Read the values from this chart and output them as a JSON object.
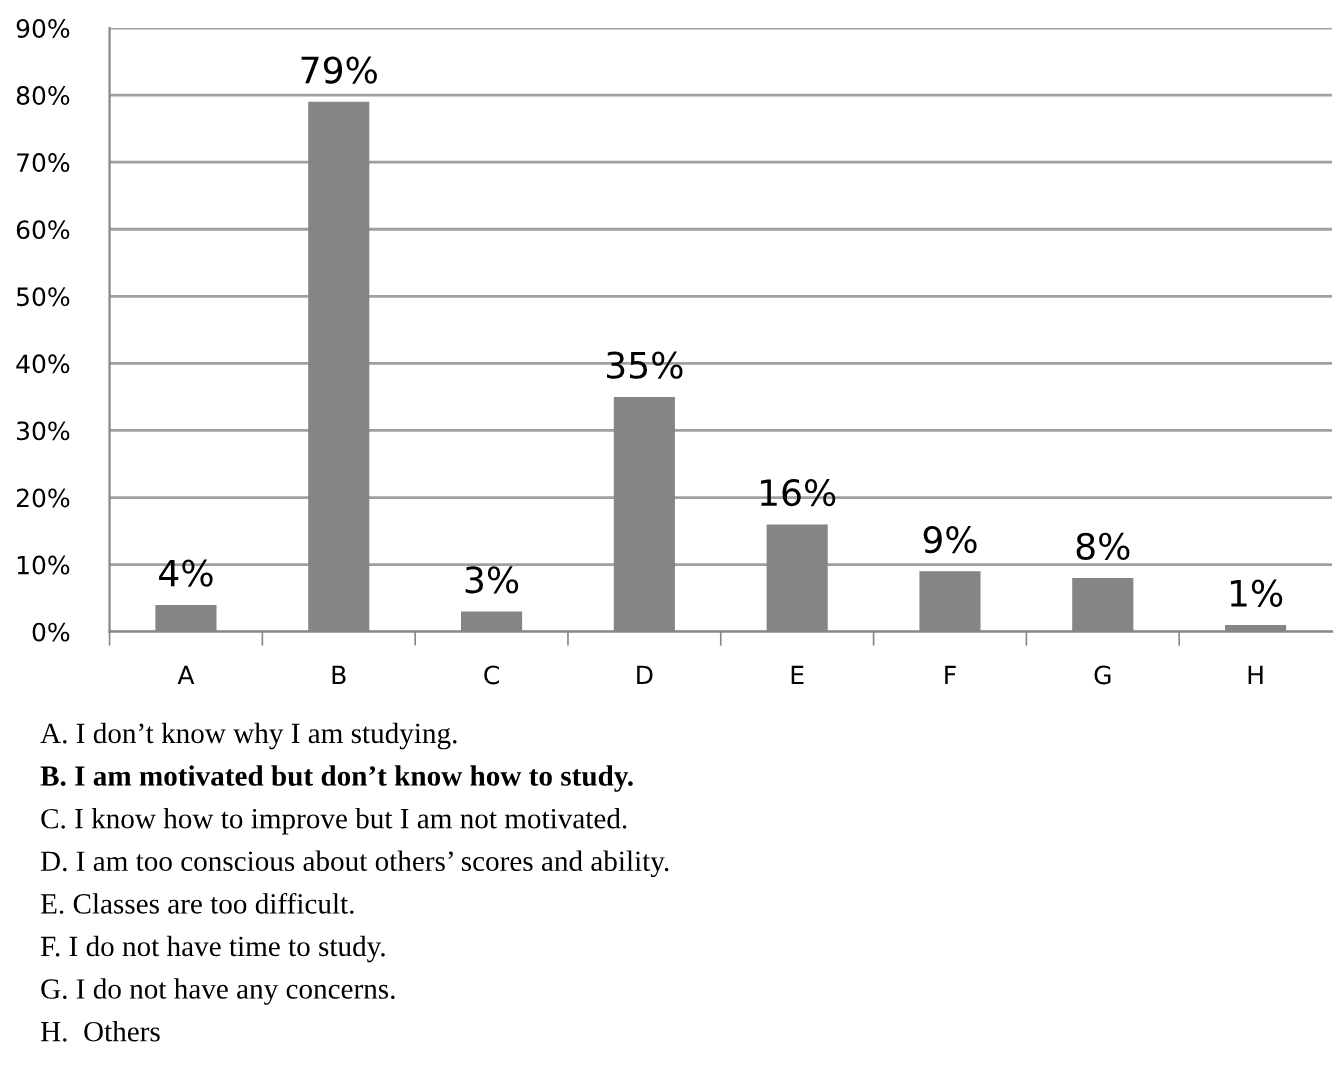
{
  "chart_data": {
    "type": "bar",
    "categories": [
      "A",
      "B",
      "C",
      "D",
      "E",
      "F",
      "G",
      "H"
    ],
    "values": [
      4,
      79,
      3,
      35,
      16,
      9,
      8,
      1
    ],
    "value_labels": [
      "4%",
      "79%",
      "3%",
      "35%",
      "16%",
      "9%",
      "8%",
      "1%"
    ],
    "color": "#858585",
    "ylim": [
      0,
      90
    ],
    "yticks": [
      {
        "value": 0,
        "label": "0%"
      },
      {
        "value": 10,
        "label": "10%"
      },
      {
        "value": 20,
        "label": "20%"
      },
      {
        "value": 30,
        "label": "30%"
      },
      {
        "value": 40,
        "label": "40%"
      },
      {
        "value": 50,
        "label": "50%"
      },
      {
        "value": 60,
        "label": "60%"
      },
      {
        "value": 70,
        "label": "70%"
      },
      {
        "value": 80,
        "label": "80%"
      },
      {
        "value": 90,
        "label": "90%"
      }
    ],
    "grid": "y",
    "legend": false,
    "annotations": [
      "A. I don’t know why I am studying.",
      "B. I am motivated but don’t know how to study.",
      "C. I know how to improve but I am not motivated.",
      "D. I am too conscious about others’ scores and ability.",
      "E. Classes are too difficult.",
      "F. I do not have time to study.",
      "G. I do not have any concerns.",
      "H.  Others"
    ]
  }
}
